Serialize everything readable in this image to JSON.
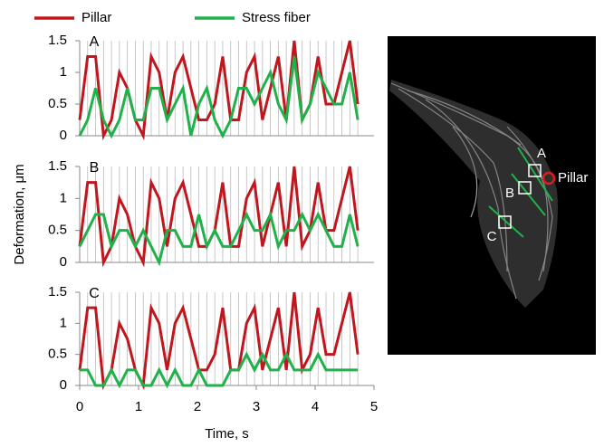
{
  "chart_data": [
    {
      "type": "line",
      "label": "A",
      "x": [
        0,
        0.135,
        0.27,
        0.405,
        0.54,
        0.675,
        0.81,
        0.945,
        1.08,
        1.215,
        1.35,
        1.485,
        1.62,
        1.755,
        1.89,
        2.025,
        2.16,
        2.295,
        2.43,
        2.565,
        2.7,
        2.835,
        2.97,
        3.105,
        3.24,
        3.375,
        3.51,
        3.645,
        3.78,
        3.915,
        4.05,
        4.185,
        4.32,
        4.455,
        4.59,
        4.725
      ],
      "series": [
        {
          "name": "Pillar",
          "color": "#c0171e",
          "values": [
            0.25,
            1.25,
            1.25,
            0,
            0.25,
            1.0,
            0.75,
            0.25,
            0,
            1.25,
            1.0,
            0.25,
            1.0,
            1.25,
            0.75,
            0.25,
            0.25,
            0.5,
            1.25,
            0.25,
            0.25,
            1.0,
            1.25,
            0.25,
            0.75,
            1.25,
            0.25,
            1.5,
            0.25,
            0.5,
            1.25,
            0.5,
            0.5,
            1.0,
            1.5,
            0.5
          ]
        },
        {
          "name": "Stress fiber",
          "color": "#1fb24a",
          "values": [
            0,
            0.25,
            0.75,
            0.25,
            0,
            0.25,
            0.75,
            0.25,
            0.25,
            0.75,
            0.75,
            0.25,
            0.5,
            0.75,
            0,
            0.5,
            0.75,
            0.25,
            0,
            0.25,
            0.75,
            0.75,
            0.5,
            0.75,
            1.0,
            0.5,
            0.25,
            1.25,
            0.25,
            0.5,
            1.0,
            0.75,
            0.5,
            0.5,
            1.0,
            0.25
          ]
        }
      ],
      "xlim": [
        0,
        5
      ],
      "ylim": [
        0,
        1.5
      ],
      "yticks": [
        0,
        0.5,
        1,
        1.5
      ]
    },
    {
      "type": "line",
      "label": "B",
      "ylabel": "Deformation, μm",
      "x": [
        0,
        0.135,
        0.27,
        0.405,
        0.54,
        0.675,
        0.81,
        0.945,
        1.08,
        1.215,
        1.35,
        1.485,
        1.62,
        1.755,
        1.89,
        2.025,
        2.16,
        2.295,
        2.43,
        2.565,
        2.7,
        2.835,
        2.97,
        3.105,
        3.24,
        3.375,
        3.51,
        3.645,
        3.78,
        3.915,
        4.05,
        4.185,
        4.32,
        4.455,
        4.59,
        4.725
      ],
      "series": [
        {
          "color": "#c0171e",
          "values": [
            0.25,
            1.25,
            1.25,
            0,
            0.25,
            1.0,
            0.75,
            0.25,
            0,
            1.25,
            1.0,
            0.25,
            1.0,
            1.25,
            0.75,
            0.25,
            0.25,
            0.5,
            1.25,
            0.25,
            0.25,
            1.0,
            1.25,
            0.25,
            0.75,
            1.25,
            0.25,
            1.5,
            0.25,
            0.5,
            1.25,
            0.5,
            0.5,
            1.0,
            1.5,
            0.5
          ]
        },
        {
          "color": "#1fb24a",
          "values": [
            0.25,
            0.5,
            0.75,
            0.75,
            0.25,
            0.5,
            0.5,
            0.25,
            0.5,
            0.25,
            0,
            0.5,
            0.5,
            0.25,
            0.25,
            0.75,
            0.25,
            0.5,
            0.25,
            0.25,
            0.5,
            0.75,
            0.5,
            0.5,
            0.75,
            0.25,
            0.5,
            0.5,
            0.75,
            0.5,
            0.75,
            0.5,
            0.25,
            0.25,
            0.75,
            0.25
          ]
        }
      ],
      "xlim": [
        0,
        5
      ],
      "ylim": [
        0,
        1.5
      ],
      "yticks": [
        0,
        0.5,
        1,
        1.5
      ]
    },
    {
      "type": "line",
      "label": "C",
      "xlabel": "Time, s",
      "x": [
        0,
        0.135,
        0.27,
        0.405,
        0.54,
        0.675,
        0.81,
        0.945,
        1.08,
        1.215,
        1.35,
        1.485,
        1.62,
        1.755,
        1.89,
        2.025,
        2.16,
        2.295,
        2.43,
        2.565,
        2.7,
        2.835,
        2.97,
        3.105,
        3.24,
        3.375,
        3.51,
        3.645,
        3.78,
        3.915,
        4.05,
        4.185,
        4.32,
        4.455,
        4.59,
        4.725
      ],
      "series": [
        {
          "color": "#c0171e",
          "values": [
            0.25,
            1.25,
            1.25,
            0,
            0.25,
            1.0,
            0.75,
            0.25,
            0,
            1.25,
            1.0,
            0.25,
            1.0,
            1.25,
            0.75,
            0.25,
            0.25,
            0.5,
            1.25,
            0.25,
            0.25,
            1.0,
            1.25,
            0.25,
            0.75,
            1.25,
            0.25,
            1.5,
            0.25,
            0.5,
            1.25,
            0.5,
            0.5,
            1.0,
            1.5,
            0.5
          ]
        },
        {
          "color": "#1fb24a",
          "values": [
            0.25,
            0.25,
            0,
            0,
            0.25,
            0,
            0.25,
            0.25,
            0,
            0,
            0.25,
            0,
            0.25,
            0,
            0,
            0.25,
            0,
            0,
            0,
            0.25,
            0.25,
            0.5,
            0.25,
            0.5,
            0.25,
            0.25,
            0.5,
            0.25,
            0.25,
            0.25,
            0.5,
            0.25,
            0.25,
            0.25,
            0.25,
            0.25
          ]
        }
      ],
      "xlim": [
        0,
        5
      ],
      "xticks": [
        0,
        1,
        2,
        3,
        4,
        5
      ],
      "ylim": [
        0,
        1.5
      ],
      "yticks": [
        0,
        0.5,
        1,
        1.5
      ]
    }
  ],
  "image": {
    "labels": [
      "A",
      "B",
      "C",
      "Pillar"
    ]
  }
}
